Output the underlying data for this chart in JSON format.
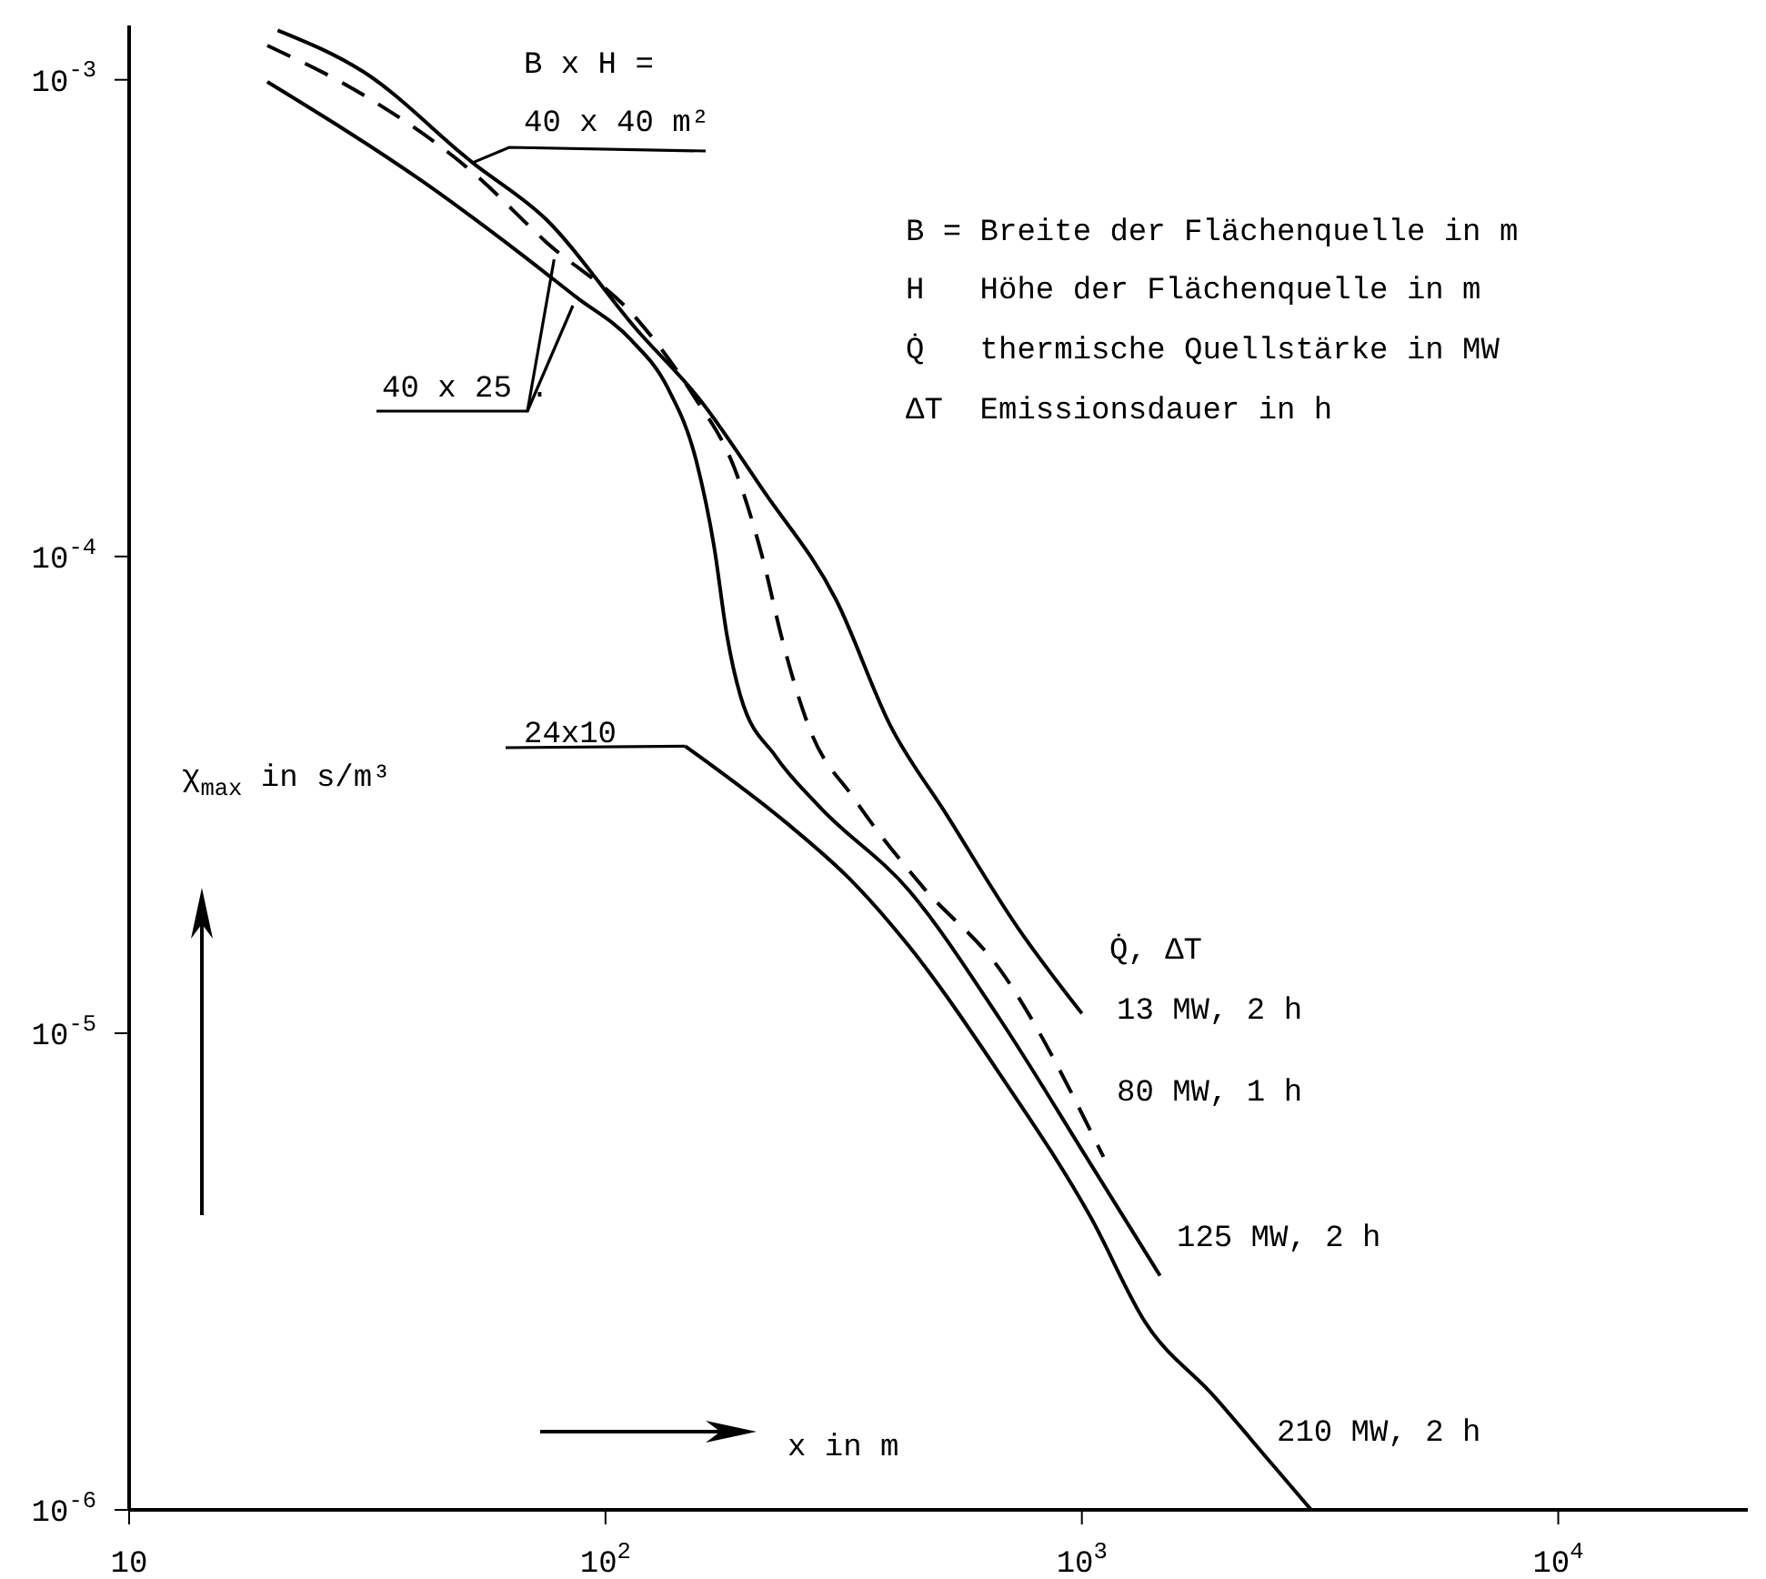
{
  "chart_data": {
    "type": "line",
    "xlabel": "x in m",
    "ylabel": "χ$_{max}$ in s/m³",
    "log": "xy",
    "grid": false,
    "legend": false,
    "marker": "none",
    "xlim": [
      10,
      25000
    ],
    "ylim": [
      1e-06,
      0.0013
    ],
    "xticks": [
      10,
      {
        "value": 100,
        "label": "10$^{2}$"
      },
      {
        "value": 1000,
        "label": "10$^{3}$"
      },
      {
        "value": 10000,
        "label": "10$^{4}$"
      }
    ],
    "yticks": [
      {
        "value": 1e-06,
        "label": "10$^{-6}$"
      },
      {
        "value": 1e-05,
        "label": "10$^{-5}$"
      },
      {
        "value": 0.0001,
        "label": "10$^{-4}$"
      },
      {
        "value": 0.001,
        "label": "10$^{-3}$"
      }
    ],
    "annotations": [
      "B x H =",
      {
        "text": "40 x 40 m²",
        "x": 52.6,
        "y": 0.00067
      },
      {
        "text": "40 x 25 .",
        "x": 78,
        "y": 0.00042
      },
      {
        "text": "24x10",
        "x": 147,
        "y": 4e-05
      },
      "B = Breite der Flächenquelle in m",
      "H   Höhe der Flächenquelle in m",
      "Q̇   thermische Quellstärke in MW",
      "ΔT  Emissionsdauer in h",
      "Q̇, ΔT"
    ],
    "series": [
      {
        "name": "13 MW, 2 h",
        "color": "#000000",
        "line_style": "solid",
        "x": [
          20.5,
          31,
          52.6,
          75,
          116,
          158,
          215,
          305,
          397,
          517,
          735,
          1000
        ],
        "values": [
          0.00127,
          0.00104,
          0.00067,
          0.00051,
          0.0003,
          0.000213,
          0.000137,
          8.1e-05,
          4.4e-05,
          2.9e-05,
          1.66e-05,
          1.1e-05
        ]
      },
      {
        "name": "80 MW, 1 h",
        "color": "#000000",
        "line_style": "dashed",
        "x": [
          19.5,
          31,
          52.6,
          75,
          116,
          151,
          188,
          215,
          234,
          267,
          333,
          461,
          673,
          1110
        ],
        "values": [
          0.00118,
          0.00093,
          0.00064,
          0.000457,
          0.000316,
          0.000222,
          0.00015,
          9.7e-05,
          6.8e-05,
          4.4e-05,
          3.1e-05,
          2.04e-05,
          1.36e-05,
          5.5e-06
        ]
      },
      {
        "name": "125 MW, 2 h",
        "color": "#000000",
        "line_style": "solid",
        "x": [
          19.5,
          41.5,
          66.7,
          86.8,
          113,
          135,
          155,
          169,
          180,
          192,
          228,
          280,
          434,
          673,
          1045,
          1459
        ],
        "values": [
          0.00099,
          0.00061,
          0.00043,
          0.00035,
          0.000285,
          0.000226,
          0.000159,
          0.000105,
          6.8e-05,
          5.1e-05,
          3.8e-05,
          3e-05,
          1.99e-05,
          1.07e-05,
          5.3e-06,
          3.1e-06
        ]
      },
      {
        "name": "210 MW, 2 h",
        "color": "#000000",
        "line_style": "solid",
        "x": [
          147,
          241,
          325,
          434,
          673,
          1045,
          1360,
          1885,
          2520,
          3030
        ],
        "values": [
          4e-05,
          2.75e-05,
          2.11e-05,
          1.52e-05,
          8.2e-06,
          4.1e-06,
          2.47e-06,
          1.74e-06,
          1.24e-06,
          1e-06
        ]
      }
    ]
  }
}
